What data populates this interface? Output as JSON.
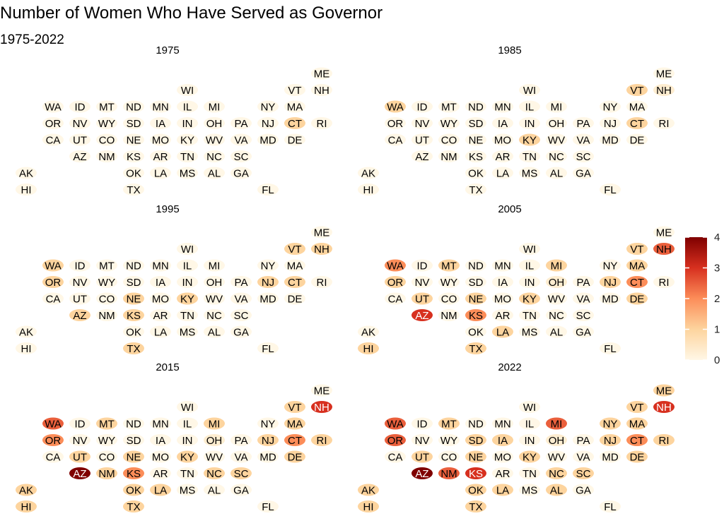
{
  "chart_data": {
    "type": "heatmap",
    "title": "Number of Women Who Have Served as Governor",
    "subtitle": "1975-2022",
    "legend": {
      "placement": "right",
      "min": 0,
      "max": 4,
      "ticks": [
        0,
        1,
        2,
        3,
        4
      ],
      "colors": [
        "#fff7e6",
        "#fdd49e",
        "#fc8d59",
        "#d7301f",
        "#7f0000"
      ]
    },
    "grid_layout": [
      {
        "state": "ME",
        "col": 11,
        "row": 0
      },
      {
        "state": "WI",
        "col": 6,
        "row": 1
      },
      {
        "state": "VT",
        "col": 10,
        "row": 1
      },
      {
        "state": "NH",
        "col": 11,
        "row": 1
      },
      {
        "state": "WA",
        "col": 1,
        "row": 2
      },
      {
        "state": "ID",
        "col": 2,
        "row": 2
      },
      {
        "state": "MT",
        "col": 3,
        "row": 2
      },
      {
        "state": "ND",
        "col": 4,
        "row": 2
      },
      {
        "state": "MN",
        "col": 5,
        "row": 2
      },
      {
        "state": "IL",
        "col": 6,
        "row": 2
      },
      {
        "state": "MI",
        "col": 7,
        "row": 2
      },
      {
        "state": "NY",
        "col": 9,
        "row": 2
      },
      {
        "state": "MA",
        "col": 10,
        "row": 2
      },
      {
        "state": "OR",
        "col": 1,
        "row": 3
      },
      {
        "state": "NV",
        "col": 2,
        "row": 3
      },
      {
        "state": "WY",
        "col": 3,
        "row": 3
      },
      {
        "state": "SD",
        "col": 4,
        "row": 3
      },
      {
        "state": "IA",
        "col": 5,
        "row": 3
      },
      {
        "state": "IN",
        "col": 6,
        "row": 3
      },
      {
        "state": "OH",
        "col": 7,
        "row": 3
      },
      {
        "state": "PA",
        "col": 8,
        "row": 3
      },
      {
        "state": "NJ",
        "col": 9,
        "row": 3
      },
      {
        "state": "CT",
        "col": 10,
        "row": 3
      },
      {
        "state": "RI",
        "col": 11,
        "row": 3
      },
      {
        "state": "CA",
        "col": 1,
        "row": 4
      },
      {
        "state": "UT",
        "col": 2,
        "row": 4
      },
      {
        "state": "CO",
        "col": 3,
        "row": 4
      },
      {
        "state": "NE",
        "col": 4,
        "row": 4
      },
      {
        "state": "MO",
        "col": 5,
        "row": 4
      },
      {
        "state": "KY",
        "col": 6,
        "row": 4
      },
      {
        "state": "WV",
        "col": 7,
        "row": 4
      },
      {
        "state": "VA",
        "col": 8,
        "row": 4
      },
      {
        "state": "MD",
        "col": 9,
        "row": 4
      },
      {
        "state": "DE",
        "col": 10,
        "row": 4
      },
      {
        "state": "AZ",
        "col": 2,
        "row": 5
      },
      {
        "state": "NM",
        "col": 3,
        "row": 5
      },
      {
        "state": "KS",
        "col": 4,
        "row": 5
      },
      {
        "state": "AR",
        "col": 5,
        "row": 5
      },
      {
        "state": "TN",
        "col": 6,
        "row": 5
      },
      {
        "state": "NC",
        "col": 7,
        "row": 5
      },
      {
        "state": "SC",
        "col": 8,
        "row": 5
      },
      {
        "state": "AK",
        "col": 0,
        "row": 6
      },
      {
        "state": "OK",
        "col": 4,
        "row": 6
      },
      {
        "state": "LA",
        "col": 5,
        "row": 6
      },
      {
        "state": "MS",
        "col": 6,
        "row": 6
      },
      {
        "state": "AL",
        "col": 7,
        "row": 6
      },
      {
        "state": "GA",
        "col": 8,
        "row": 6
      },
      {
        "state": "HI",
        "col": 0,
        "row": 7
      },
      {
        "state": "TX",
        "col": 4,
        "row": 7
      },
      {
        "state": "FL",
        "col": 9,
        "row": 7
      }
    ],
    "panels": [
      {
        "year": "1975",
        "values": {
          "CT": 1
        }
      },
      {
        "year": "1985",
        "values": {
          "CT": 1,
          "KY": 1,
          "VT": 1,
          "NH": 0.3,
          "WA": 1
        }
      },
      {
        "year": "1995",
        "values": {
          "CT": 1,
          "KY": 1,
          "VT": 1,
          "WA": 1,
          "NH": 1,
          "NJ": 1,
          "OR": 1,
          "NE": 1,
          "AZ": 1,
          "KS": 1,
          "TX": 1
        }
      },
      {
        "year": "2005",
        "values": {
          "CT": 2,
          "KY": 1,
          "VT": 1,
          "WA": 2,
          "NH": 2.5,
          "NJ": 1,
          "OR": 1,
          "NE": 1,
          "AZ": 3,
          "KS": 2,
          "TX": 1,
          "MI": 1,
          "MT": 1,
          "MA": 1,
          "OH": 0.3,
          "UT": 1,
          "DE": 1,
          "LA": 1,
          "HI": 1
        }
      },
      {
        "year": "2015",
        "values": {
          "CT": 2,
          "KY": 1,
          "VT": 1,
          "WA": 2.5,
          "NH": 3,
          "NJ": 1,
          "OR": 2,
          "NE": 1,
          "AZ": 4,
          "KS": 2,
          "TX": 1,
          "MI": 1,
          "MT": 1,
          "MA": 1,
          "OH": 0.3,
          "UT": 1,
          "DE": 1,
          "LA": 1,
          "HI": 1,
          "RI": 1,
          "NM": 1,
          "NC": 1,
          "SC": 1,
          "OK": 1,
          "AK": 1
        }
      },
      {
        "year": "2022",
        "values": {
          "CT": 2,
          "KY": 1,
          "VT": 1,
          "WA": 2.5,
          "NH": 3,
          "NJ": 1,
          "OR": 2.5,
          "NE": 1,
          "AZ": 4,
          "KS": 3,
          "TX": 1,
          "MI": 2.5,
          "MT": 1,
          "MA": 1,
          "OH": 0.3,
          "UT": 1,
          "DE": 1,
          "LA": 1,
          "HI": 1,
          "RI": 1,
          "NM": 2.5,
          "NC": 1,
          "SC": 1,
          "OK": 1,
          "AK": 1,
          "ME": 1,
          "NY": 1,
          "IA": 1,
          "SD": 1,
          "AL": 1
        }
      }
    ]
  }
}
